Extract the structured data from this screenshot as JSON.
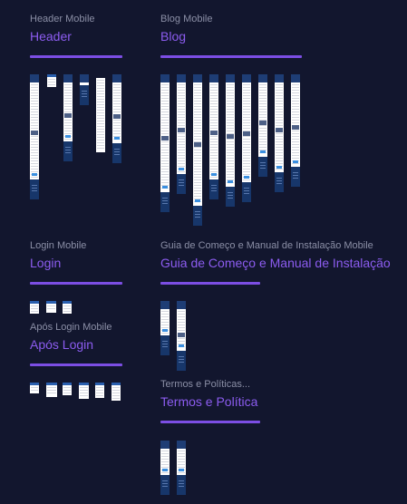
{
  "colors": {
    "background": "#12162e",
    "accent": "#8c5cf0",
    "subtitle": "#8b8fa6",
    "frame_header": "#1e3d75",
    "frame_footer": "#17366a"
  },
  "sections": {
    "header": {
      "subtitle": "Header Mobile",
      "title": "Header"
    },
    "blog": {
      "subtitle": "Blog Mobile",
      "title": "Blog"
    },
    "login": {
      "subtitle": "Login Mobile",
      "title": "Login"
    },
    "guide": {
      "subtitle": "Guia de Começo e Manual de Instalação Mobile",
      "title": "Guia de Começo e Manual de Instalação"
    },
    "after_login": {
      "subtitle": "Após Login Mobile",
      "title": "Após Login"
    },
    "terms": {
      "subtitle": "Termos e Políticas...",
      "title": "Termos e Política"
    }
  }
}
